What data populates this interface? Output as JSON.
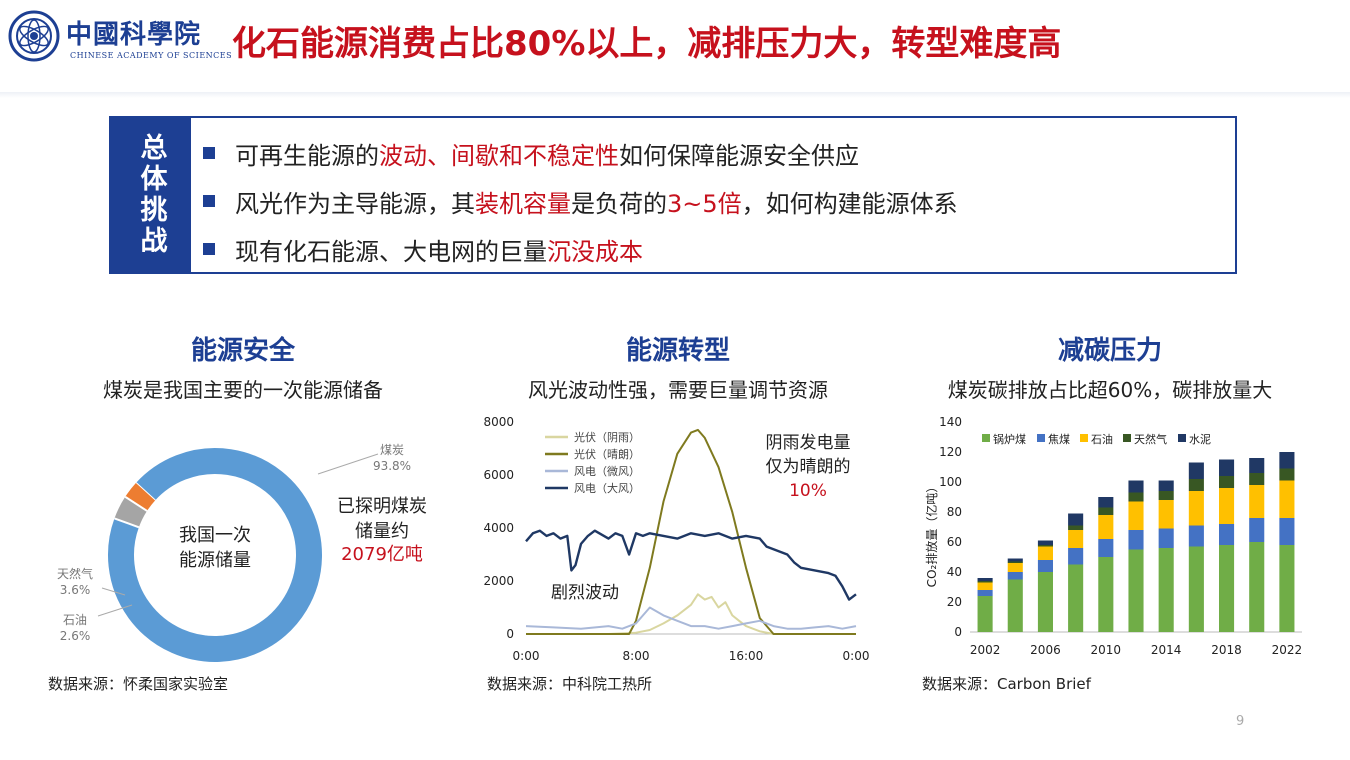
{
  "header": {
    "logo_cn": "中國科學院",
    "logo_en": "CHINESE ACADEMY OF SCIENCES",
    "title": "化石能源消费占比80%以上，减排压力大，转型难度高"
  },
  "challenge": {
    "label": "总体挑战",
    "bullets": [
      {
        "pre": "可再生能源的",
        "hl": "波动、间歇和不稳定性",
        "post": "如何保障能源安全供应"
      },
      {
        "pre": "风光作为主导能源，其",
        "hl": "装机容量",
        "mid": "是负荷的",
        "hl2": "3~5倍",
        "post": "，如何构建能源体系"
      },
      {
        "pre": "现有化石能源、大电网的巨量",
        "hl": "沉没成本"
      }
    ]
  },
  "colors": {
    "brand_blue": "#1d3f93",
    "accent_red": "#c6111d"
  },
  "sections": {
    "security": {
      "title": "能源安全",
      "subtitle": "煤炭是我国主要的一次能源储备",
      "center_line1": "我国一次",
      "center_line2": "能源储量",
      "note_line1": "已探明煤炭",
      "note_line2": "储量约",
      "note_value": "2079亿吨",
      "source": "数据来源：怀柔国家实验室"
    },
    "transition": {
      "title": "能源转型",
      "subtitle": "风光波动性强，需要巨量调节资源",
      "note_line1": "阴雨发电量",
      "note_line2": "仅为晴朗的",
      "note_value": "10%",
      "annotation": "剧烈波动",
      "source": "数据来源：中科院工热所"
    },
    "carbon": {
      "title": "减碳压力",
      "subtitle": "煤炭碳排放占比超60%，碳排放量大",
      "source": "数据来源：Carbon Brief"
    }
  },
  "chart_data": [
    {
      "type": "pie",
      "labels": [
        "煤炭",
        "天然气",
        "石油"
      ],
      "values": [
        93.8,
        3.6,
        2.6
      ],
      "value_labels": [
        "93.8%",
        "3.6%",
        "2.6%"
      ],
      "colors": [
        "#5b9bd5",
        "#a5a5a5",
        "#ed7d31"
      ],
      "title": ""
    },
    {
      "type": "line",
      "x_ticks": [
        "0:00",
        "8:00",
        "16:00",
        "0:00"
      ],
      "x_range_hours": [
        0,
        24
      ],
      "ylim": [
        0,
        8000
      ],
      "y_ticks": [
        "0",
        "2000",
        "4000",
        "6000",
        "8000"
      ],
      "series": [
        {
          "name": "光伏（阴雨）",
          "color": "#d9d6a0",
          "x": [
            0,
            6,
            8,
            9,
            10,
            11,
            12,
            12.5,
            13,
            13.5,
            14,
            14.5,
            15,
            15.5,
            16,
            17,
            18,
            24
          ],
          "y": [
            0,
            0,
            50,
            150,
            400,
            700,
            1100,
            1500,
            1300,
            1400,
            1000,
            1200,
            700,
            500,
            300,
            100,
            0,
            0
          ]
        },
        {
          "name": "光伏（晴朗）",
          "color": "#7f7a1f",
          "x": [
            0,
            7.5,
            8,
            9,
            10,
            11,
            12,
            12.5,
            13,
            14,
            15,
            16,
            17,
            18,
            24
          ],
          "y": [
            0,
            0,
            500,
            2500,
            5000,
            6800,
            7600,
            7700,
            7400,
            6300,
            4600,
            2500,
            600,
            0,
            0
          ]
        },
        {
          "name": "风电（微风）",
          "color": "#a9b8d8",
          "x": [
            0,
            2,
            4,
            6,
            7,
            8,
            9,
            10,
            11,
            12,
            13,
            14,
            15,
            16,
            17,
            18,
            19,
            20,
            21,
            22,
            23,
            24
          ],
          "y": [
            300,
            250,
            200,
            300,
            200,
            400,
            1000,
            700,
            500,
            300,
            300,
            200,
            300,
            400,
            500,
            300,
            200,
            200,
            250,
            300,
            200,
            300
          ]
        },
        {
          "name": "风电（大风）",
          "color": "#1f3864",
          "x": [
            0,
            0.5,
            1,
            1.5,
            2,
            2.5,
            3,
            3.3,
            3.6,
            4,
            4.5,
            5,
            6,
            6.5,
            7,
            7.5,
            8,
            8.5,
            9,
            10,
            11,
            12,
            13,
            14,
            15,
            16,
            17,
            17.5,
            18,
            19,
            19.5,
            20,
            21,
            22,
            22.5,
            23,
            23.5,
            24
          ],
          "y": [
            3500,
            3800,
            3900,
            3700,
            3800,
            3600,
            3700,
            2400,
            2600,
            3400,
            3700,
            3900,
            3600,
            3800,
            3700,
            3000,
            3800,
            3700,
            3800,
            3700,
            3600,
            3800,
            3700,
            3800,
            3600,
            3700,
            3600,
            3300,
            3200,
            3000,
            2700,
            2500,
            2400,
            2300,
            2200,
            1800,
            1300,
            1500
          ]
        }
      ],
      "title": ""
    },
    {
      "type": "bar",
      "stacked": true,
      "categories": [
        "2002",
        "2004",
        "2006",
        "2008",
        "2010",
        "2012",
        "2014",
        "2016",
        "2018",
        "2020",
        "2022"
      ],
      "x_tick_labels": [
        "2002",
        "2006",
        "2010",
        "2014",
        "2018",
        "2022"
      ],
      "ylabel": "CO₂排放量（亿吨）",
      "ylim": [
        0,
        140
      ],
      "y_ticks": [
        "0",
        "20",
        "40",
        "60",
        "80",
        "100",
        "120",
        "140"
      ],
      "legend_position": "top",
      "series": [
        {
          "name": "锅炉煤",
          "color": "#70ad47",
          "values": [
            24,
            35,
            40,
            45,
            50,
            55,
            56,
            57,
            58,
            60,
            58
          ]
        },
        {
          "name": "焦煤",
          "color": "#4472c4",
          "values": [
            4,
            5,
            8,
            11,
            12,
            13,
            13,
            14,
            14,
            16,
            18
          ]
        },
        {
          "name": "石油",
          "color": "#ffc000",
          "values": [
            5,
            6,
            9,
            12,
            16,
            19,
            19,
            23,
            24,
            22,
            25
          ]
        },
        {
          "name": "天然气",
          "color": "#385723",
          "values": [
            1,
            1,
            1,
            3,
            5,
            6,
            6,
            8,
            8,
            8,
            8
          ]
        },
        {
          "name": "水泥",
          "color": "#203864",
          "values": [
            2,
            2,
            3,
            8,
            7,
            8,
            7,
            11,
            11,
            10,
            11
          ]
        }
      ],
      "title": ""
    }
  ]
}
